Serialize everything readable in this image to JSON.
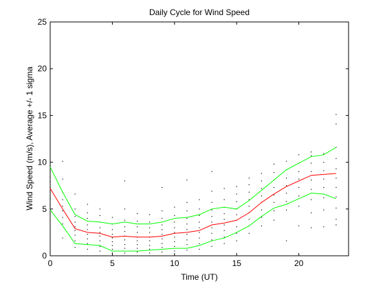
{
  "chart_data": {
    "type": "line",
    "title": "Daily Cycle for Wind Speed",
    "xlabel": "Time (UT)",
    "ylabel": "Wind Speed (m/s), Average +/- 1 sigma",
    "xlim": [
      0,
      24
    ],
    "ylim": [
      0,
      25
    ],
    "x_ticks": [
      0,
      5,
      10,
      15,
      20
    ],
    "y_ticks": [
      0,
      5,
      10,
      15,
      20,
      25
    ],
    "grid": false,
    "legend": "none",
    "x": [
      0,
      1,
      2,
      3,
      4,
      5,
      6,
      7,
      8,
      9,
      10,
      11,
      12,
      13,
      14,
      15,
      16,
      17,
      18,
      19,
      20,
      21,
      22,
      23
    ],
    "series": [
      {
        "role": "average",
        "color": "#ff0000",
        "values": [
          7.2,
          5.0,
          2.9,
          2.5,
          2.4,
          2.0,
          2.1,
          2.0,
          2.0,
          2.1,
          2.4,
          2.5,
          2.7,
          3.3,
          3.5,
          3.8,
          4.6,
          5.7,
          6.6,
          7.4,
          8.0,
          8.6,
          8.7,
          8.8
        ]
      },
      {
        "role": "average + 1 sigma",
        "color": "#00ff00",
        "values": [
          9.5,
          6.8,
          4.4,
          3.7,
          3.6,
          3.4,
          3.6,
          3.4,
          3.4,
          3.6,
          4.0,
          4.1,
          4.4,
          5.0,
          5.2,
          5.0,
          5.9,
          7.0,
          8.1,
          9.2,
          9.9,
          10.6,
          10.8,
          11.6
        ]
      },
      {
        "role": "average - 1 sigma",
        "color": "#00ff00",
        "values": [
          4.9,
          3.2,
          1.3,
          1.2,
          1.1,
          0.5,
          0.5,
          0.5,
          0.6,
          0.7,
          0.8,
          0.8,
          1.1,
          1.6,
          1.9,
          2.5,
          3.2,
          4.2,
          5.1,
          5.5,
          6.1,
          6.7,
          6.6,
          6.1
        ]
      }
    ],
    "observations_color": "#000000",
    "observations": [
      {
        "x": 0,
        "y": [
          5.4,
          6.1,
          6.8,
          7.3,
          7.9,
          8.4,
          9.0,
          9.6
        ]
      },
      {
        "x": 1,
        "y": [
          1.9,
          3.4,
          4.1,
          4.8,
          5.3,
          6.0,
          6.8,
          8.2,
          10.1
        ]
      },
      {
        "x": 2,
        "y": [
          0.9,
          1.6,
          2.2,
          2.7,
          3.1,
          3.6,
          4.2,
          5.0,
          6.6
        ]
      },
      {
        "x": 3,
        "y": [
          0.7,
          1.3,
          1.8,
          2.3,
          2.8,
          3.3,
          4.0,
          4.6,
          5.5
        ]
      },
      {
        "x": 4,
        "y": [
          0.5,
          1.0,
          1.6,
          2.1,
          2.5,
          3.0,
          3.6,
          4.3,
          5.0
        ]
      },
      {
        "x": 5,
        "y": [
          0.3,
          0.7,
          1.1,
          1.5,
          1.9,
          2.3,
          2.8,
          3.4,
          4.1
        ]
      },
      {
        "x": 6,
        "y": [
          0.3,
          0.8,
          1.2,
          1.7,
          2.1,
          2.6,
          3.1,
          3.8,
          5.0,
          8.0
        ]
      },
      {
        "x": 7,
        "y": [
          0.4,
          0.8,
          1.2,
          1.6,
          2.0,
          2.5,
          3.1,
          3.7,
          4.5
        ]
      },
      {
        "x": 8,
        "y": [
          0.3,
          0.7,
          1.1,
          1.6,
          2.0,
          2.5,
          3.0,
          3.6,
          4.4
        ]
      },
      {
        "x": 9,
        "y": [
          0.4,
          0.9,
          1.3,
          1.8,
          2.3,
          2.8,
          3.3,
          4.0,
          4.8,
          7.3
        ]
      },
      {
        "x": 10,
        "y": [
          0.5,
          1.0,
          1.5,
          2.0,
          2.5,
          3.0,
          3.6,
          4.3,
          5.2
        ]
      },
      {
        "x": 11,
        "y": [
          0.6,
          1.2,
          1.7,
          2.3,
          2.8,
          3.4,
          4.0,
          4.8,
          5.7,
          8.1
        ]
      },
      {
        "x": 12,
        "y": [
          0.7,
          1.3,
          1.9,
          2.5,
          3.0,
          3.6,
          4.3,
          5.0,
          6.0
        ]
      },
      {
        "x": 13,
        "y": [
          1.0,
          1.7,
          2.4,
          3.0,
          3.6,
          4.2,
          4.9,
          5.7,
          6.9,
          9.0
        ]
      },
      {
        "x": 14,
        "y": [
          1.3,
          2.0,
          2.7,
          3.3,
          3.9,
          4.5,
          5.2,
          6.0,
          7.2
        ]
      },
      {
        "x": 15,
        "y": [
          1.6,
          2.4,
          3.1,
          3.8,
          4.4,
          5.0,
          5.8,
          6.6,
          7.4
        ]
      },
      {
        "x": 16,
        "y": [
          2.4,
          3.2,
          3.9,
          4.6,
          5.3,
          6.0,
          6.8,
          7.6,
          8.3
        ]
      },
      {
        "x": 17,
        "y": [
          3.2,
          4.1,
          4.9,
          5.7,
          6.4,
          7.2,
          8.0,
          8.8
        ]
      },
      {
        "x": 18,
        "y": [
          3.8,
          4.8,
          5.7,
          6.5,
          7.3,
          8.1,
          8.9,
          9.8
        ]
      },
      {
        "x": 19,
        "y": [
          1.6,
          4.9,
          5.8,
          6.7,
          7.5,
          8.3,
          9.2,
          10.1
        ]
      },
      {
        "x": 20,
        "y": [
          3.2,
          5.3,
          6.4,
          7.3,
          8.2,
          9.0,
          9.9,
          10.8
        ]
      },
      {
        "x": 21,
        "y": [
          3.0,
          4.6,
          6.0,
          7.1,
          8.1,
          9.0,
          9.9,
          10.7,
          11.1
        ]
      },
      {
        "x": 22,
        "y": [
          3.1,
          4.9,
          6.2,
          7.3,
          8.2,
          9.1,
          10.0,
          10.9
        ]
      },
      {
        "x": 23,
        "y": [
          3.3,
          3.9,
          5.1,
          6.3,
          7.3,
          8.3,
          9.3,
          10.4,
          11.6,
          14.1,
          15.1
        ]
      }
    ]
  }
}
